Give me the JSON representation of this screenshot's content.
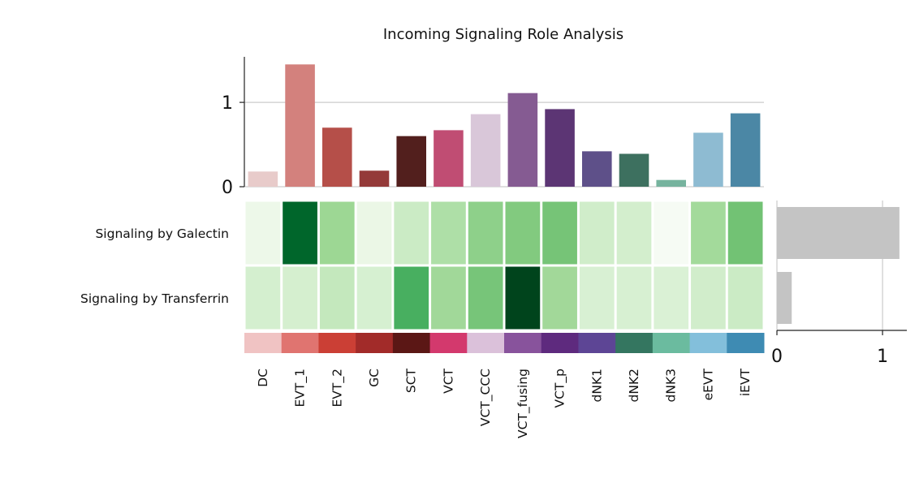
{
  "chart_data": {
    "type": "heatmap",
    "title": "Incoming Signaling Role Analysis",
    "categories": [
      "DC",
      "EVT_1",
      "EVT_2",
      "GC",
      "SCT",
      "VCT",
      "VCT_CCC",
      "VCT_fusing",
      "VCT_p",
      "dNK1",
      "dNK2",
      "dNK3",
      "eEVT",
      "iEVT"
    ],
    "category_colors": [
      "#f0c3c3",
      "#e07470",
      "#cb3f35",
      "#a22b29",
      "#5b1715",
      "#d3396d",
      "#dbc1da",
      "#88539c",
      "#5e2a7e",
      "#5d4595",
      "#347660",
      "#6bbb9f",
      "#83bfdb",
      "#3e8bb3"
    ],
    "rows": [
      "Signaling by Galectin",
      "Signaling by Transferrin"
    ],
    "heatmap_colors": [
      [
        "#edf8e9",
        "#00662b",
        "#9dd794",
        "#ebf7e6",
        "#cbebc5",
        "#aedfa7",
        "#8ed08a",
        "#82ca7f",
        "#76c477",
        "#d0edca",
        "#d3eecd",
        "#f6fbf4",
        "#a3da9b",
        "#72c274"
      ],
      [
        "#d4efcf",
        "#d5efcf",
        "#c4e8bd",
        "#d6f0d1",
        "#48af60",
        "#a1d899",
        "#77c579",
        "#00441c",
        "#a2d899",
        "#d8f0d3",
        "#d7f0d2",
        "#daf1d5",
        "#d1edcb",
        "#cbebc5"
      ]
    ],
    "colormap": "Greens",
    "top_bar": {
      "type": "bar",
      "values": [
        0.18,
        1.45,
        0.7,
        0.19,
        0.6,
        0.67,
        0.86,
        1.11,
        0.92,
        0.42,
        0.39,
        0.08,
        0.64,
        0.87
      ],
      "bar_colors": [
        "#e8cbca",
        "#d3817d",
        "#b54f49",
        "#943a39",
        "#521f1d",
        "#c04d73",
        "#d9c7d9",
        "#855b92",
        "#5c3574",
        "#5e5089",
        "#3d705f",
        "#76b39e",
        "#8ebbd2",
        "#4b87a5"
      ],
      "ylim": [
        0,
        1.54
      ],
      "yticks": [
        "0",
        "1"
      ],
      "ytick_values": [
        0,
        1
      ],
      "grid": true
    },
    "side_bar": {
      "type": "bar",
      "orientation": "horizontal",
      "values": [
        1.16,
        0.14
      ],
      "color": "#c4c4c4",
      "xlim": [
        0,
        1.23
      ],
      "xticks": [
        "0",
        "1"
      ],
      "xtick_values": [
        0,
        1
      ],
      "grid": true
    }
  }
}
